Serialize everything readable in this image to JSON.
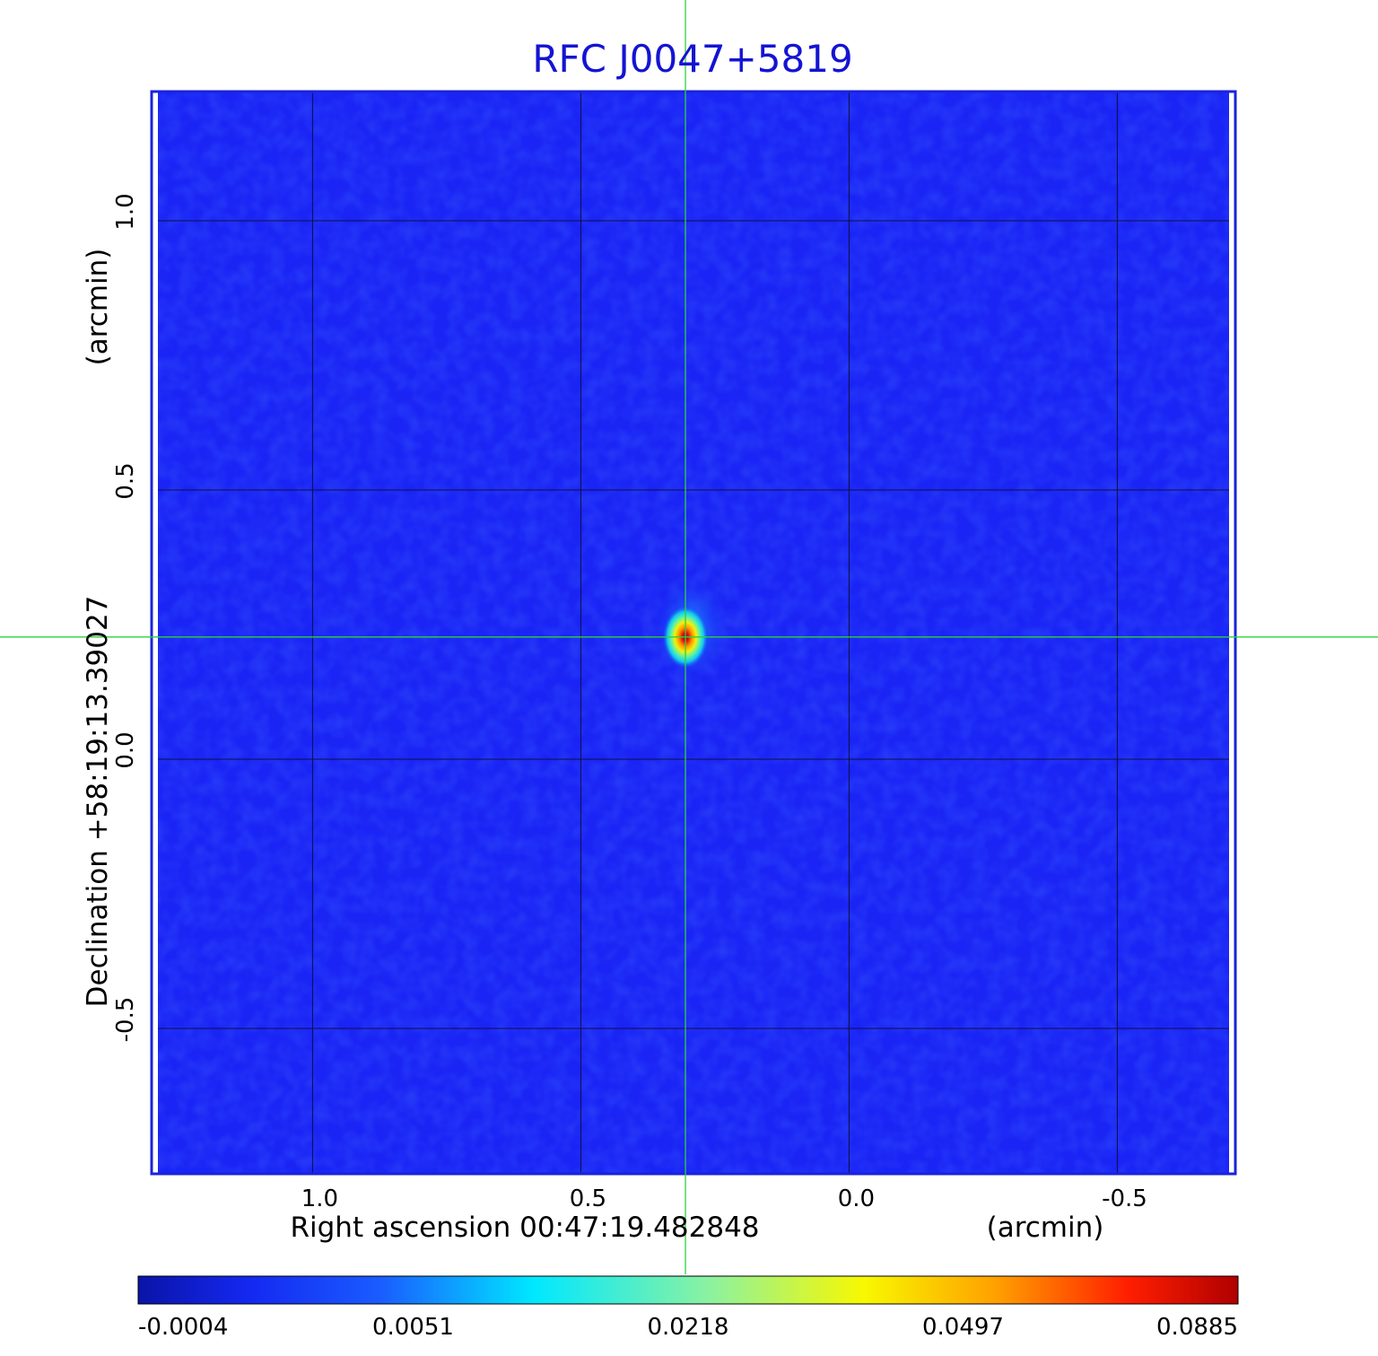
{
  "chart_data": {
    "type": "heatmap",
    "title": "RFC J0047+5819",
    "x_axis": {
      "center_label": "Right ascension  00:47:19.482848",
      "unit_label": "(arcmin)",
      "ticks": [
        "1.0",
        "0.5",
        "0.0",
        "-0.5"
      ],
      "tick_values": [
        1.0,
        0.5,
        0.0,
        -0.5
      ],
      "range": [
        1.3,
        -0.72
      ],
      "reversed": true
    },
    "y_axis": {
      "center_label": "Declination  +58:19:13.39027",
      "unit_label": "(arcmin)",
      "ticks": [
        "1.0",
        "0.5",
        "0.0",
        "-0.5"
      ],
      "tick_values": [
        1.0,
        0.5,
        0.0,
        -0.5
      ],
      "range": [
        -0.77,
        1.24
      ]
    },
    "grid": true,
    "crosshair": {
      "x": 0.305,
      "y": 0.227
    },
    "source_peak": {
      "x": 0.305,
      "y": 0.227,
      "value": 0.0885
    },
    "colorbar": {
      "placement": "bottom",
      "ticks": [
        "-0.0004",
        "0.0051",
        "0.0218",
        "0.0497",
        "0.0885"
      ],
      "tick_values": [
        -0.0004,
        0.0051,
        0.0218,
        0.0497,
        0.0885
      ],
      "colormap": "jet"
    },
    "colors": {
      "background_map": "#1a24f5",
      "title": "#1414d2",
      "crosshair": "#2cd23c",
      "frame": "#1a22dc",
      "grid": "#101040"
    }
  }
}
